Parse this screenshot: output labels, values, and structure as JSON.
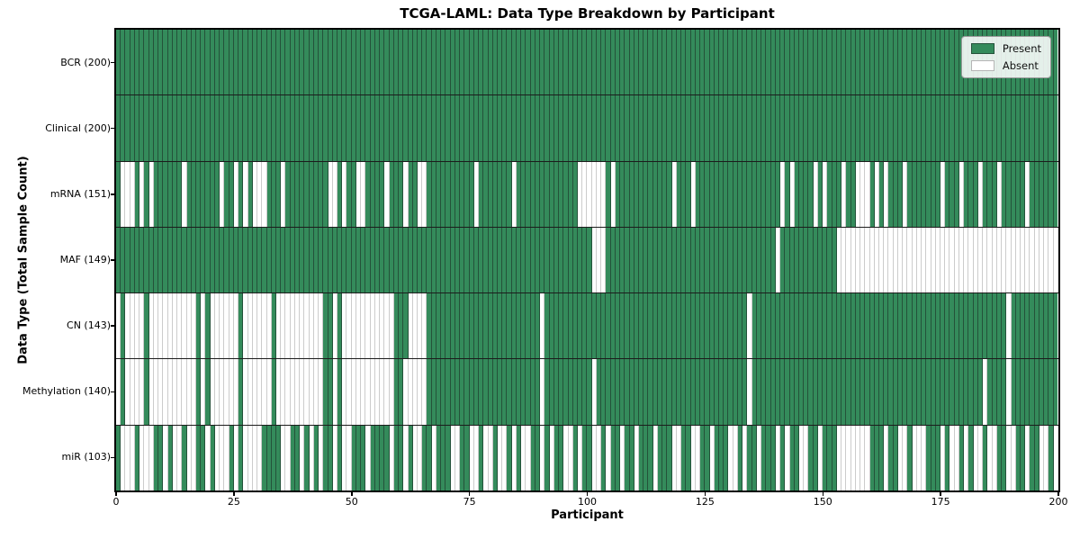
{
  "header": {
    "title": "TCGA-LAML: Data Type Breakdown by Participant"
  },
  "axes": {
    "xlabel": "Participant",
    "ylabel": "Data Type (Total Sample Count)",
    "x_ticks": [
      0,
      25,
      50,
      75,
      100,
      125,
      150,
      175,
      200
    ]
  },
  "legend": {
    "items": [
      {
        "label": "Present",
        "color_key": "present"
      },
      {
        "label": "Absent",
        "color_key": "absent"
      }
    ],
    "position": "upper right"
  },
  "colors": {
    "present": "#348b5b",
    "present_edge": "#24523a",
    "absent": "#ffffff",
    "absent_edge": "#cccccc",
    "row_divider": "#1c1c1c",
    "spine": "#000000"
  },
  "chart_data": {
    "type": "heatmap",
    "title": "TCGA-LAML: Data Type Breakdown by Participant",
    "xlabel": "Participant",
    "ylabel": "Data Type (Total Sample Count)",
    "x_range": [
      0,
      200
    ],
    "n_participants": 200,
    "grid": false,
    "legend": [
      "Present",
      "Absent"
    ],
    "legend_position": "upper right",
    "rows": [
      {
        "label": "BCR (200)",
        "data_type": "BCR",
        "present_count": 200,
        "absent_participants": []
      },
      {
        "label": "Clinical (200)",
        "data_type": "Clinical",
        "present_count": 200,
        "absent_participants": []
      },
      {
        "label": "mRNA (151)",
        "data_type": "mRNA",
        "present_count": 151,
        "absent_participants": [
          2,
          3,
          4,
          6,
          8,
          15,
          23,
          26,
          28,
          30,
          31,
          32,
          36,
          46,
          47,
          49,
          52,
          53,
          58,
          62,
          65,
          66,
          77,
          85,
          99,
          100,
          101,
          102,
          103,
          104,
          106,
          119,
          123,
          142,
          144,
          149,
          151,
          155,
          158,
          159,
          160,
          162,
          164,
          168,
          176,
          180,
          184,
          188,
          194
        ]
      },
      {
        "label": "MAF (149)",
        "data_type": "MAF",
        "present_count": 149,
        "absent_participants": [
          102,
          103,
          104,
          141,
          154,
          155,
          156,
          157,
          158,
          159,
          160,
          161,
          162,
          163,
          164,
          165,
          166,
          167,
          168,
          169,
          170,
          171,
          172,
          173,
          174,
          175,
          176,
          177,
          178,
          179,
          180,
          181,
          182,
          183,
          184,
          185,
          186,
          187,
          188,
          189,
          190,
          191,
          192,
          193,
          194,
          195,
          196,
          197,
          198,
          199,
          200
        ]
      },
      {
        "label": "CN (143)",
        "data_type": "CN",
        "present_count": 143,
        "absent_participants": [
          1,
          3,
          4,
          5,
          6,
          8,
          9,
          10,
          11,
          12,
          13,
          14,
          15,
          16,
          17,
          19,
          21,
          22,
          23,
          24,
          25,
          26,
          28,
          29,
          30,
          31,
          32,
          33,
          35,
          36,
          37,
          38,
          39,
          40,
          41,
          42,
          43,
          44,
          47,
          49,
          50,
          51,
          52,
          53,
          54,
          55,
          56,
          57,
          58,
          59,
          63,
          64,
          65,
          66,
          91,
          135,
          190
        ]
      },
      {
        "label": "Methylation (140)",
        "data_type": "Methylation",
        "present_count": 140,
        "absent_participants": [
          1,
          3,
          4,
          5,
          6,
          8,
          9,
          10,
          11,
          12,
          13,
          14,
          15,
          16,
          17,
          19,
          21,
          22,
          23,
          24,
          25,
          26,
          28,
          29,
          30,
          31,
          32,
          33,
          35,
          36,
          37,
          38,
          39,
          40,
          41,
          42,
          43,
          44,
          47,
          49,
          50,
          51,
          52,
          53,
          54,
          55,
          56,
          57,
          58,
          59,
          62,
          63,
          64,
          65,
          66,
          91,
          102,
          135,
          185,
          190
        ]
      },
      {
        "label": "miR (103)",
        "data_type": "miR",
        "present_count": 103,
        "absent_participants": [
          2,
          3,
          4,
          6,
          7,
          8,
          11,
          13,
          14,
          16,
          17,
          20,
          22,
          23,
          24,
          26,
          28,
          29,
          30,
          31,
          36,
          37,
          40,
          42,
          44,
          47,
          49,
          50,
          54,
          59,
          62,
          64,
          65,
          68,
          72,
          73,
          76,
          77,
          79,
          80,
          82,
          83,
          85,
          87,
          88,
          91,
          93,
          96,
          97,
          99,
          102,
          103,
          105,
          108,
          111,
          115,
          119,
          120,
          123,
          124,
          127,
          131,
          132,
          134,
          137,
          141,
          143,
          146,
          147,
          150,
          154,
          155,
          156,
          157,
          158,
          159,
          160,
          164,
          167,
          168,
          170,
          171,
          172,
          176,
          178,
          179,
          181,
          183,
          184,
          186,
          187,
          190,
          191,
          194,
          197,
          198,
          200
        ]
      }
    ]
  }
}
